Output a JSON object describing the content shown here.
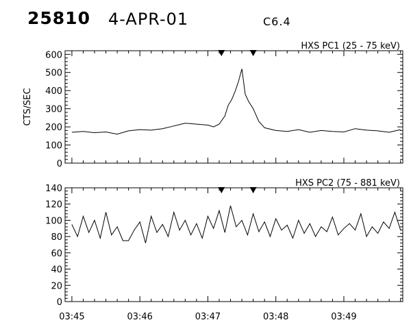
{
  "header": {
    "event_id": "25810",
    "date": "4-APR-01",
    "goes_class": "C6.4"
  },
  "chart_data": [
    {
      "type": "line",
      "title": "HXS PC1 (25 - 75 keV)",
      "ylabel": "CTS/SEC",
      "xlabel": "",
      "x_range": [
        "03:44:54",
        "03:49:52"
      ],
      "ylim": [
        0,
        620
      ],
      "yticks": [
        0,
        100,
        200,
        300,
        400,
        500,
        600
      ],
      "xticks": [
        "03:45",
        "03:46",
        "03:47",
        "03:48",
        "03:49"
      ],
      "interval_markers": [
        "03:47:12",
        "03:47:40"
      ],
      "series": [
        {
          "x": [
            "03:45:00",
            "03:45:10",
            "03:45:20",
            "03:45:30",
            "03:45:40",
            "03:45:50",
            "03:46:00",
            "03:46:10",
            "03:46:20",
            "03:46:30",
            "03:46:40",
            "03:46:50",
            "03:47:00",
            "03:47:05",
            "03:47:10",
            "03:47:15",
            "03:47:18",
            "03:47:21",
            "03:47:24",
            "03:47:27",
            "03:47:30",
            "03:47:33",
            "03:47:36",
            "03:47:40",
            "03:47:45",
            "03:47:50",
            "03:48:00",
            "03:48:10",
            "03:48:20",
            "03:48:30",
            "03:48:40",
            "03:48:50",
            "03:49:00",
            "03:49:10",
            "03:49:20",
            "03:49:30",
            "03:49:40",
            "03:49:50"
          ],
          "values": [
            170,
            175,
            168,
            172,
            160,
            178,
            185,
            182,
            190,
            205,
            220,
            215,
            210,
            200,
            215,
            260,
            320,
            350,
            395,
            450,
            520,
            380,
            340,
            300,
            230,
            195,
            180,
            175,
            185,
            170,
            180,
            175,
            172,
            190,
            182,
            178,
            170,
            185
          ]
        }
      ]
    },
    {
      "type": "line",
      "title": "HXS PC2 (75 - 881 keV)",
      "ylabel": "",
      "xlabel": "",
      "x_range": [
        "03:44:54",
        "03:49:52"
      ],
      "ylim": [
        0,
        140
      ],
      "yticks": [
        0,
        20,
        40,
        60,
        80,
        100,
        120,
        140
      ],
      "xticks": [
        "03:45",
        "03:46",
        "03:47",
        "03:48",
        "03:49"
      ],
      "interval_markers": [
        "03:47:12",
        "03:47:40"
      ],
      "series": [
        {
          "x": [
            "03:45:00",
            "03:45:05",
            "03:45:10",
            "03:45:15",
            "03:45:20",
            "03:45:25",
            "03:45:30",
            "03:45:35",
            "03:45:40",
            "03:45:45",
            "03:45:50",
            "03:45:55",
            "03:46:00",
            "03:46:05",
            "03:46:10",
            "03:46:15",
            "03:46:20",
            "03:46:25",
            "03:46:30",
            "03:46:35",
            "03:46:40",
            "03:46:45",
            "03:46:50",
            "03:46:55",
            "03:47:00",
            "03:47:05",
            "03:47:10",
            "03:47:15",
            "03:47:20",
            "03:47:25",
            "03:47:30",
            "03:47:35",
            "03:47:40",
            "03:47:45",
            "03:47:50",
            "03:47:55",
            "03:48:00",
            "03:48:05",
            "03:48:10",
            "03:48:15",
            "03:48:20",
            "03:48:25",
            "03:48:30",
            "03:48:35",
            "03:48:40",
            "03:48:45",
            "03:48:50",
            "03:48:55",
            "03:49:00",
            "03:49:05",
            "03:49:10",
            "03:49:15",
            "03:49:20",
            "03:49:25",
            "03:49:30",
            "03:49:35",
            "03:49:40",
            "03:49:45",
            "03:49:50"
          ],
          "values": [
            95,
            80,
            105,
            85,
            100,
            78,
            110,
            82,
            92,
            75,
            75,
            88,
            98,
            72,
            105,
            85,
            95,
            80,
            110,
            88,
            100,
            82,
            96,
            78,
            105,
            90,
            112,
            85,
            118,
            92,
            100,
            82,
            108,
            86,
            98,
            80,
            102,
            88,
            94,
            78,
            100,
            84,
            96,
            80,
            92,
            86,
            104,
            82,
            90,
            96,
            88,
            108,
            80,
            92,
            84,
            98,
            90,
            110,
            88
          ]
        }
      ]
    }
  ]
}
